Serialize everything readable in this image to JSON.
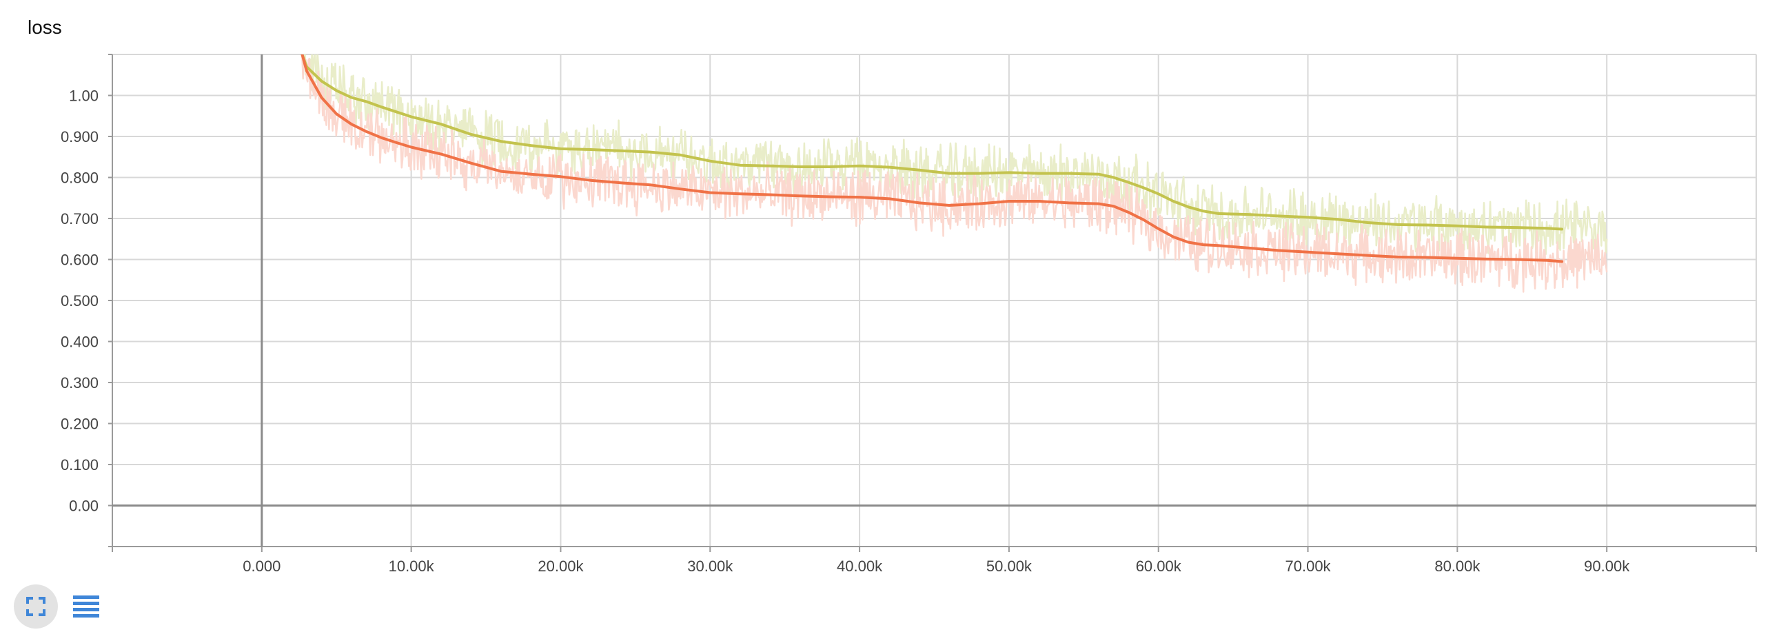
{
  "chart_data": {
    "type": "line",
    "title": "loss",
    "xlabel": "",
    "ylabel": "",
    "xlim": [
      -10000,
      100000
    ],
    "ylim": [
      -0.1,
      1.1
    ],
    "x_ticks": [
      0,
      10000,
      20000,
      30000,
      40000,
      50000,
      60000,
      70000,
      80000,
      90000
    ],
    "x_tick_labels": [
      "0.000",
      "10.00k",
      "20.00k",
      "30.00k",
      "40.00k",
      "50.00k",
      "60.00k",
      "70.00k",
      "80.00k",
      "90.00k"
    ],
    "y_ticks": [
      0,
      0.1,
      0.2,
      0.3,
      0.4,
      0.5,
      0.6,
      0.7,
      0.8,
      0.9,
      1.0
    ],
    "y_tick_labels": [
      "0.00",
      "0.100",
      "0.200",
      "0.300",
      "0.400",
      "0.500",
      "0.600",
      "0.700",
      "0.800",
      "0.900",
      "1.00"
    ],
    "grid": true,
    "series": [
      {
        "color": "#c3c34e",
        "raw_color": "#e9edc9",
        "x": [
          2700,
          3000,
          4000,
          5000,
          6000,
          7000,
          8000,
          9000,
          10000,
          12000,
          14000,
          16000,
          18000,
          20000,
          22000,
          24000,
          26000,
          28000,
          30000,
          32000,
          34000,
          36000,
          38000,
          40000,
          42000,
          44000,
          46000,
          48000,
          50000,
          52000,
          54000,
          56000,
          57000,
          58000,
          59000,
          60000,
          61000,
          62000,
          63000,
          64000,
          66000,
          68000,
          70000,
          72000,
          74000,
          76000,
          78000,
          80000,
          82000,
          84000,
          86000,
          87000
        ],
        "y": [
          1.1,
          1.07,
          1.035,
          1.012,
          0.995,
          0.985,
          0.972,
          0.96,
          0.948,
          0.93,
          0.905,
          0.888,
          0.878,
          0.87,
          0.868,
          0.865,
          0.862,
          0.855,
          0.84,
          0.83,
          0.828,
          0.826,
          0.826,
          0.828,
          0.825,
          0.818,
          0.81,
          0.81,
          0.812,
          0.81,
          0.81,
          0.808,
          0.8,
          0.788,
          0.775,
          0.76,
          0.742,
          0.728,
          0.718,
          0.712,
          0.71,
          0.706,
          0.703,
          0.698,
          0.69,
          0.685,
          0.684,
          0.682,
          0.679,
          0.678,
          0.676,
          0.674
        ]
      },
      {
        "color": "#f07247",
        "raw_color": "#fbd8cf",
        "x": [
          2700,
          3000,
          4000,
          5000,
          6000,
          7000,
          8000,
          9000,
          10000,
          12000,
          14000,
          16000,
          18000,
          20000,
          22000,
          24000,
          26000,
          28000,
          30000,
          32000,
          34000,
          36000,
          38000,
          40000,
          42000,
          44000,
          46000,
          48000,
          50000,
          52000,
          54000,
          56000,
          57000,
          58000,
          59000,
          60000,
          61000,
          62000,
          63000,
          64000,
          66000,
          68000,
          70000,
          72000,
          74000,
          76000,
          78000,
          80000,
          82000,
          84000,
          86000,
          87000
        ],
        "y": [
          1.1,
          1.06,
          0.995,
          0.955,
          0.93,
          0.912,
          0.897,
          0.885,
          0.874,
          0.857,
          0.835,
          0.815,
          0.808,
          0.802,
          0.793,
          0.787,
          0.782,
          0.772,
          0.763,
          0.76,
          0.758,
          0.755,
          0.753,
          0.752,
          0.748,
          0.738,
          0.732,
          0.736,
          0.742,
          0.742,
          0.738,
          0.736,
          0.73,
          0.715,
          0.697,
          0.675,
          0.655,
          0.642,
          0.636,
          0.634,
          0.628,
          0.622,
          0.618,
          0.614,
          0.61,
          0.606,
          0.605,
          0.603,
          0.601,
          0.6,
          0.598,
          0.595
        ]
      }
    ]
  },
  "toolbar": {
    "expand_icon": "fullscreen-icon",
    "data_icon": "list-icon"
  }
}
